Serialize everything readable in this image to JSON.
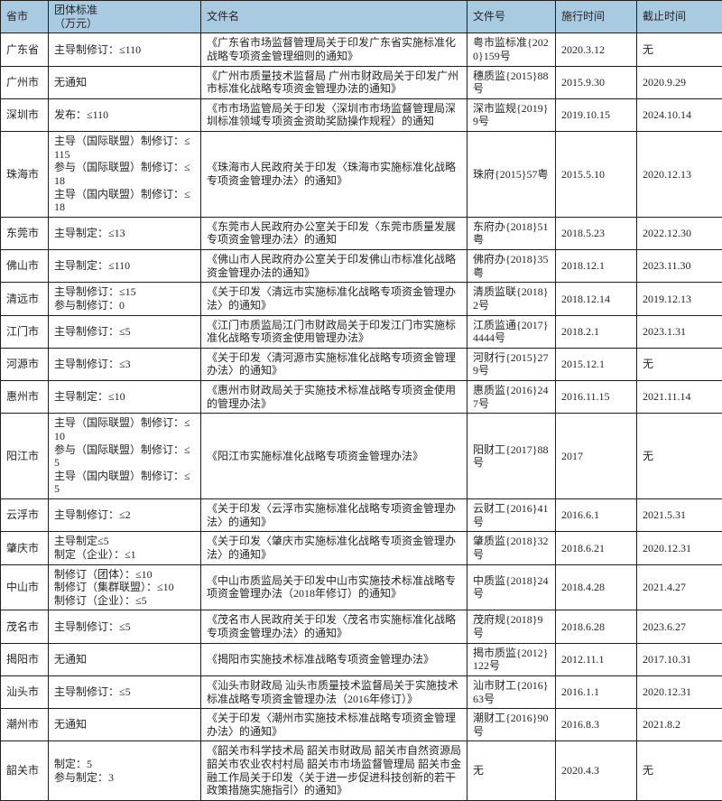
{
  "colors": {
    "header_bg": "#a9cbe2",
    "border": "#1f1f1f",
    "text": "#262626",
    "body_bg": "#ffffff"
  },
  "table": {
    "headers": [
      "省市",
      "团体标准\n（万元）",
      "文件名",
      "文件号",
      "施行时间",
      "截止时间"
    ],
    "rows": [
      {
        "city": "广东省",
        "standard": [
          "主导制修订：≤110"
        ],
        "filename": "《广东省市场监督管理局关于印发广东省实施标准化战略专项资金管理细则的通知》",
        "file_no": "粤市监标准{2020}159号",
        "start": "2020.3.12",
        "end": "无"
      },
      {
        "city": "广州市",
        "standard": [
          "无通知"
        ],
        "filename": "《广州市质量技术监督局 广州市财政局关于印发广州市标准化战略专项资金管理办法的通知》",
        "file_no": "穗质监{2015}88号",
        "start": "2015.9.30",
        "end": "2020.9.29"
      },
      {
        "city": "深圳市",
        "standard": [
          "发布：≤110"
        ],
        "filename": "《市市场监管局关于印发〈深圳市市场监督管理局深圳标准领域专项资金资助奖励操作规程〉的通知",
        "file_no": "深市监规{2019}9号",
        "start": "2019.10.15",
        "end": "2024.10.14"
      },
      {
        "city": "珠海市",
        "standard": [
          "主导（国际联盟）制修订：≤115",
          "参与（国际联盟）制修订：≤18",
          "主导（国内联盟）制修订：≤18"
        ],
        "filename": "《珠海市人民政府关于印发〈珠海市实施标准化战略专项资金管理办法〉的通知》",
        "file_no": "珠府{2015}57粤",
        "start": "2015.5.10",
        "end": "2020.12.13"
      },
      {
        "city": "东莞市",
        "standard": [
          "主导制定：≤13"
        ],
        "filename": "《东莞市人民政府办公室关于印发〈东莞市质量发展专项资金管理办法〉的通知",
        "file_no": "东府办{2018}51粤",
        "start": "2018.5.23",
        "end": "2022.12.30"
      },
      {
        "city": "佛山市",
        "standard": [
          "主导制定：≤110"
        ],
        "filename": "《佛山市人民政府办公室关于印发佛山市标准化战略资金管理办法的通知》",
        "file_no": "佛府办{2018}35粤",
        "start": "2018.12.1",
        "end": "2023.11.30"
      },
      {
        "city": "清远市",
        "standard": [
          "主导制修订：≤15",
          "参与制修订：0"
        ],
        "filename": "《关于印发〈清远市实施标准化战略专项资金管理办法〉的通知》",
        "file_no": "清质监联{2018}2号",
        "start": "2018.12.14",
        "end": "2019.12.13"
      },
      {
        "city": "江门市",
        "standard": [
          "主导制修订：≤5"
        ],
        "filename": "《江门市质监局江门市财政局关于印发江门市实施标准化战略专项资金使用管理办法》",
        "file_no": "江质监通{2017}4444号",
        "start": "2018.2.1",
        "end": "2023.1.31"
      },
      {
        "city": "河源市",
        "standard": [
          "主导制修订：≤3"
        ],
        "filename": "《关于印发〈清河源市实施标准化战略专项资金管理办法〉的通知》",
        "file_no": "河财行{2015}279号",
        "start": "2015.12.1",
        "end": "无"
      },
      {
        "city": "惠州市",
        "standard": [
          "主导制定：≤10"
        ],
        "filename": "《惠州市财政局关于实施技术标准战略专项资金使用的管理办法》",
        "file_no": "惠质监{2016}247号",
        "start": "2016.11.15",
        "end": "2021.11.14"
      },
      {
        "city": "阳江市",
        "standard": [
          "主导（国际联盟）制修订：≤10",
          "参与（国际联盟）制修订：≤5",
          "主导（国内联盟）制修订：≤5"
        ],
        "filename": "《阳江市实施标准化战略专项资金管理办法》",
        "file_no": "阳财工{2017}88号",
        "start": "2017",
        "end": "无"
      },
      {
        "city": "云浮市",
        "standard": [
          "主导制修订：≤2"
        ],
        "filename": "《关于印发〈云浮市实施标准化战略专项资金管理办法〉的通知》",
        "file_no": "云财工{2016}41号",
        "start": "2016.6.1",
        "end": "2021.5.31"
      },
      {
        "city": "肇庆市",
        "standard": [
          "主导制定≤5",
          "制定（企业）：≤1"
        ],
        "filename": "《关于印发〈肇庆市实施标准化战略专项资金管理办法〉的通知》",
        "file_no": "肇质监{2018}32号",
        "start": "2018.6.21",
        "end": "2020.12.31"
      },
      {
        "city": "中山市",
        "standard": [
          "制修订（团体）：≤10",
          "制修订（集群联盟）：≤10",
          "制修订（企业）：≤5"
        ],
        "filename": "《中山市质监局关于印发中山市实施技术标准战略专项资金管理办法（2018年修订）的通知》",
        "file_no": "中质监{2018}24号",
        "start": "2018.4.28",
        "end": "2021.4.27"
      },
      {
        "city": "茂名市",
        "standard": [
          "主导制修订：≤5"
        ],
        "filename": "《茂名市人民政府关于印发〈茂名市实施标准化战略专项资金管理办法〉的通知》",
        "file_no": "茂府规{2018}9号",
        "start": "2018.6.28",
        "end": "2023.6.27"
      },
      {
        "city": "揭阳市",
        "standard": [
          "无通知"
        ],
        "filename": "《揭阳市实施技术标准战略专项资金管理办法》",
        "file_no": "揭市质监{2012}122号",
        "start": "2012.11.1",
        "end": "2017.10.31"
      },
      {
        "city": "汕头市",
        "standard": [
          "主导制修订：≤5"
        ],
        "filename": "《汕头市财政局 汕头市质量技术监督局关于实施技术标准战略专项资金管理办法（2016年修订）》",
        "file_no": "汕市财工{2016}63号",
        "start": "2016.1.1",
        "end": "2020.12.31"
      },
      {
        "city": "潮州市",
        "standard": [
          "无通知"
        ],
        "filename": "《关于印发〈潮州市实施技术标准战略专项资金管理办法〉的通知》",
        "file_no": "潮财工{2016}90号",
        "start": "2016.8.3",
        "end": "2021.8.2"
      },
      {
        "city": "韶关市",
        "standard": [
          "制定：5",
          "参与制定：3"
        ],
        "filename": "《韶关市科学技术局 韶关市财政局 韶关市自然资源局 韶关市农业农村村局 韶关市市场监督管理局 韶关市金融工作局关于印发〈关于进一步促进科技创新的若干政策措施实施指引〉的通知》",
        "file_no": "无",
        "start": "2020.4.3",
        "end": "无"
      }
    ]
  }
}
